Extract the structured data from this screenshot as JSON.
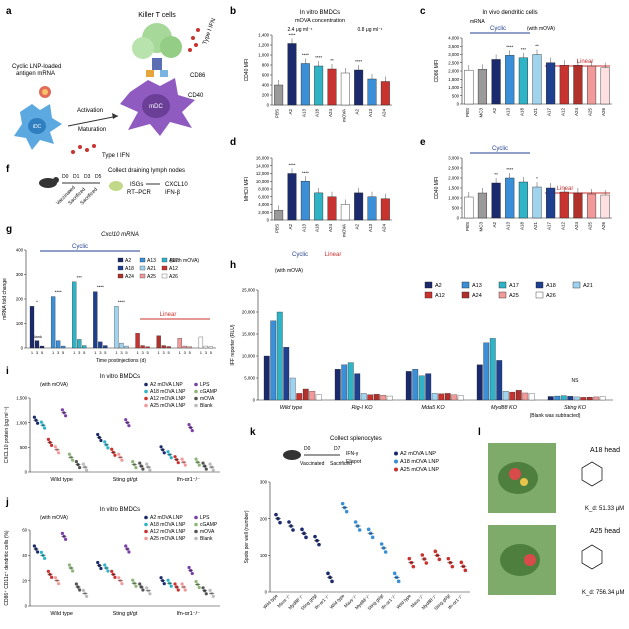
{
  "colors": {
    "blue": "#1f3f8f",
    "teal": "#2fb3c6",
    "red": "#c8332f",
    "lightred": "#f19a9a",
    "navy": "#1a2a6c",
    "sky": "#3a8fd6",
    "grey": "#9a9a9a",
    "green": "#8db57a",
    "purple": "#7b3fa8",
    "lightblue": "#9fd3ee"
  },
  "panel_letters": [
    "a",
    "b",
    "c",
    "d",
    "e",
    "f",
    "g",
    "h",
    "i",
    "j",
    "k",
    "l"
  ],
  "panel_a": {
    "killer": "Killer T cells",
    "cd86": "CD86",
    "cd40": "CD40",
    "ifn_top": "Type I IFN",
    "cargo": "Cyclic LNP-loaded antigen mRNA",
    "activation": "Activation",
    "maturation": "Maturation",
    "ifn_bottom": "Type I IFN",
    "idc": "iDC",
    "mdc": "mDC"
  },
  "panel_f": {
    "title": "Collect draining lymph nodes",
    "d0": "D0",
    "d1": "D1",
    "d3": "D3",
    "d5": "D5",
    "vaccinated": "Vaccinated",
    "sacrificed1": "Sacrificed",
    "sacrificed2": "Sacrificed",
    "isgs": "ISGs",
    "rtpcr": "RT–PCR",
    "arrow_out": "CXCL10",
    "ifnb": "IFN-β"
  },
  "chart_data": [
    {
      "id": "b",
      "type": "bar",
      "title": "In vitro BMDCs",
      "subtitle": "mOVA concentration",
      "conc1": "2.4 μg ml⁻¹",
      "conc2": "0.8 μg ml⁻¹",
      "ylabel": "CD40 MFI",
      "ylim": [
        0,
        1400
      ],
      "yticks": [
        "0",
        "200",
        "400",
        "600",
        "800",
        "1,000",
        "1,200",
        "1,400"
      ],
      "categories": [
        "PBS",
        "A2",
        "A13",
        "A18",
        "A24",
        "mOVA",
        "A2",
        "A13",
        "A24"
      ],
      "values": [
        400,
        1230,
        830,
        780,
        720,
        640,
        700,
        520,
        470
      ],
      "stars": [
        "",
        "****",
        "****",
        "****",
        "**",
        "",
        "****",
        "",
        ""
      ]
    },
    {
      "id": "c",
      "type": "bar",
      "ylabel": "MHCII MFI",
      "ylim": [
        0,
        16000
      ],
      "yticks": [
        "0",
        "2,000",
        "4,000",
        "6,000",
        "8,000",
        "10,000",
        "12,000",
        "14,000",
        "16,000"
      ],
      "categories": [
        "PBS",
        "A2",
        "A13",
        "A18",
        "A24",
        "mOVA",
        "A2",
        "A13",
        "A24"
      ],
      "values": [
        2500,
        12000,
        10000,
        7000,
        6000,
        4000,
        7000,
        6000,
        5500
      ],
      "stars": [
        "",
        "****",
        "****",
        "",
        "",
        "",
        "",
        "",
        ""
      ],
      "legend_cyclic": "Cyclic",
      "legend_linear": "Linear"
    },
    {
      "id": "d",
      "type": "bar",
      "title": "In vivo dendritic cells",
      "group": "Cyclic",
      "group2": "Linear",
      "mrna": "mRNA",
      "with_mova": "(with mOVA)",
      "ylabel": "CD86 MFI",
      "ylim": [
        0,
        4000
      ],
      "yticks": [
        "0",
        "500",
        "1,000",
        "1,500",
        "2,000",
        "2,500",
        "3,000",
        "3,500",
        "4,000"
      ],
      "categories": [
        "PBS",
        "MC3",
        "A2",
        "A13",
        "A18",
        "A21",
        "A17",
        "A12",
        "A24",
        "A25",
        "A26"
      ],
      "values": [
        2050,
        2100,
        2700,
        2950,
        2800,
        3000,
        2500,
        2350,
        2350,
        2300,
        2200
      ],
      "stars": [
        "",
        "",
        "",
        "****",
        "***",
        "**",
        "",
        "",
        "",
        "",
        ""
      ]
    },
    {
      "id": "e",
      "type": "bar",
      "group": "Cyclic",
      "group2": "Linear",
      "ylabel": "CD40 MFI",
      "ylim": [
        0,
        3000
      ],
      "yticks": [
        "0",
        "500",
        "1,000",
        "1,500",
        "2,000",
        "2,500",
        "3,000"
      ],
      "categories": [
        "PBS",
        "MC3",
        "A2",
        "A13",
        "A18",
        "A21",
        "A17",
        "A12",
        "A24",
        "A25",
        "A26"
      ],
      "values": [
        1050,
        1250,
        1750,
        2000,
        1800,
        1550,
        1500,
        1300,
        1250,
        1200,
        1150
      ],
      "stars": [
        "",
        "",
        "**",
        "****",
        "",
        "*",
        "",
        "",
        "",
        "",
        ""
      ]
    },
    {
      "id": "g",
      "type": "bar",
      "title": "Cxcl10 mRNA",
      "group": "Cyclic",
      "group2": "Linear",
      "with_mova": "(With mOVA)",
      "ylabel": "mRNA fold change",
      "xlabel": "Time postinjections (d)",
      "ylim": [
        0,
        400
      ],
      "yticks": [
        "0",
        "100",
        "200",
        "300",
        "400"
      ],
      "legend": [
        "A2",
        "A13",
        "A17",
        "A18",
        "A21",
        "A12",
        "A24",
        "A25",
        "A26"
      ],
      "day_labels": [
        "1",
        "3",
        "5"
      ],
      "blank": "Blank",
      "values": [
        [
          170,
          30,
          8
        ],
        [
          210,
          30,
          8
        ],
        [
          270,
          35,
          10
        ],
        [
          230,
          25,
          10
        ],
        [
          170,
          20,
          8
        ],
        [
          60,
          10,
          5
        ],
        [
          50,
          10,
          6
        ],
        [
          40,
          8,
          5
        ],
        [
          45,
          8,
          5
        ]
      ],
      "stars": [
        "*",
        "****",
        "***",
        "****",
        "****",
        "",
        "",
        "",
        ""
      ]
    },
    {
      "id": "h",
      "type": "bar",
      "with_mova": "(with mOVA)",
      "ylabel": "IFF reporter (RLU)",
      "ylim": [
        0,
        25000
      ],
      "yticks": [
        "0",
        "5,000",
        "10,000",
        "15,000",
        "20,000",
        "25,000"
      ],
      "legend": [
        "A2",
        "A13",
        "A17",
        "A18",
        "A21",
        "A12",
        "A24",
        "A25",
        "A26"
      ],
      "categories": [
        "Wild type",
        "Rig-I KO",
        "Mda5 KO",
        "Myd88 KO",
        "Sting KO"
      ],
      "values": [
        [
          10000,
          18000,
          20000,
          12000,
          5000,
          1500,
          2500,
          2000,
          1200
        ],
        [
          7000,
          8000,
          8500,
          6000,
          1500,
          1200,
          1300,
          1100,
          900
        ],
        [
          6500,
          7000,
          5500,
          6000,
          1500,
          1400,
          1500,
          1200,
          1000
        ],
        [
          8000,
          13000,
          14000,
          9000,
          2000,
          1800,
          2200,
          1600,
          1400
        ],
        [
          800,
          900,
          1000,
          850,
          700,
          600,
          650,
          700,
          750
        ]
      ],
      "note": "(Blank was subtracted)",
      "ns": "NS"
    },
    {
      "id": "i",
      "type": "scatter",
      "title": "In vitro BMDCs",
      "with_mova": "(with mOVA)",
      "ylabel": "CXCL10 protein (pg ml⁻¹)",
      "ylim": [
        0,
        1500
      ],
      "yticks": [
        "0",
        "500",
        "1,000",
        "1,500"
      ],
      "legend": [
        "A2 mOVA LNP",
        "A18 mOVA LNP",
        "A12 mOVA LNP",
        "A25 mOVA LNP",
        "LPS",
        "cGAMP",
        "mOVA",
        "Blank"
      ],
      "categories": [
        "Wild type",
        "Sting gt/gt",
        "Ifn-αr1⁻/⁻"
      ],
      "values": [
        [
          1050,
          950,
          600,
          450,
          1200,
          300,
          150,
          100
        ],
        [
          700,
          550,
          400,
          300,
          1000,
          150,
          120,
          100
        ],
        [
          450,
          350,
          250,
          200,
          900,
          200,
          120,
          100
        ]
      ]
    },
    {
      "id": "j",
      "type": "scatter",
      "title": "In vitro BMDCs",
      "with_mova": "(with mOVA)",
      "ylabel": "CD86⁺ CD11c⁺ dendritic cells (%)",
      "ylim": [
        0,
        60
      ],
      "yticks": [
        "0",
        "20",
        "40",
        "60"
      ],
      "legend": [
        "A2 mOVA LNP",
        "A18 mOVA LNP",
        "A12 mOVA LNP",
        "A25 mOVA LNP",
        "LPS",
        "cGAMP",
        "mOVA",
        "Blank"
      ],
      "categories": [
        "Wild type",
        "Sting gt/gt",
        "Ifn-αr1⁻/⁻"
      ],
      "values": [
        [
          45,
          40,
          25,
          20,
          55,
          30,
          15,
          10
        ],
        [
          32,
          30,
          25,
          20,
          45,
          18,
          15,
          12
        ],
        [
          20,
          18,
          15,
          15,
          28,
          17,
          12,
          10
        ]
      ]
    },
    {
      "id": "k",
      "type": "scatter",
      "title": "Collect splenocytes",
      "d0": "D0",
      "d7": "D7",
      "vaccinated": "Vaccinated",
      "sacrificed": "Sacrificed",
      "ifng": "IFN-γ",
      "elispot": "Elispot",
      "ylabel": "Spots per well (number)",
      "ylim": [
        0,
        300
      ],
      "yticks": [
        "0",
        "100",
        "200",
        "300"
      ],
      "legend": [
        "A2 mOVA LNP",
        "A18 mOVA LNP",
        "A25 mOVA LNP"
      ],
      "categories": [
        "Wild type",
        "Mavs⁻/⁻",
        "Myd88⁻/⁻",
        "Sting gt/gt",
        "Ifn-αr1⁻/⁻"
      ],
      "values": [
        [
          200,
          180,
          160,
          140,
          40
        ],
        [
          230,
          180,
          160,
          120,
          40
        ],
        [
          80,
          90,
          100,
          80,
          70
        ]
      ]
    }
  ],
  "panel_l": {
    "a18_title": "A18 head",
    "a18_kd": "K_d: 51.33 μM",
    "a25_title": "A25 head",
    "a25_kd": "K_d: 756.34 μM"
  }
}
